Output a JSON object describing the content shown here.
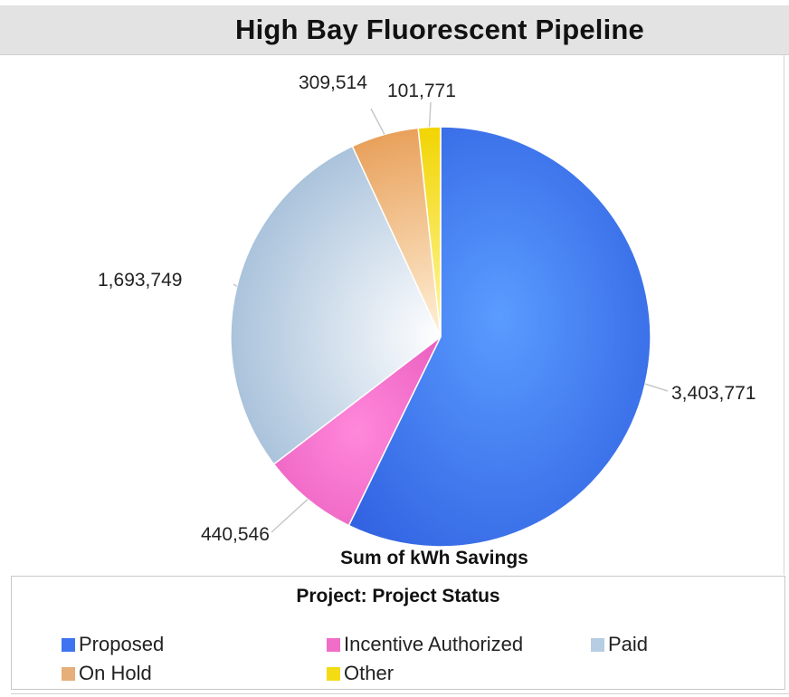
{
  "title": "High Bay Fluorescent Pipeline",
  "chart_data": {
    "type": "pie",
    "title": "High Bay Fluorescent Pipeline",
    "measure_label": "Sum of kWh Savings",
    "legend_title": "Project: Project Status",
    "legend_position": "bottom",
    "slices": [
      {
        "name": "Proposed",
        "value": 3403771,
        "label": "3,403,771",
        "color": "#3f74f0"
      },
      {
        "name": "Incentive Authorized",
        "value": 440546,
        "label": "440,546",
        "color": "#f06ec8"
      },
      {
        "name": "Paid",
        "value": 1693749,
        "label": "1,693,749",
        "color": "#c3d3e3"
      },
      {
        "name": "On Hold",
        "value": 309514,
        "label": "309,514",
        "color": "#eaa45f"
      },
      {
        "name": "Other",
        "value": 101771,
        "label": "101,771",
        "color": "#f3dc15"
      }
    ]
  },
  "legend": {
    "items": [
      {
        "label": "Proposed",
        "color": "#3f74f0"
      },
      {
        "label": "Incentive Authorized",
        "color": "#f06ec8"
      },
      {
        "label": "Paid",
        "color": "#b7cde2"
      },
      {
        "label": "On Hold",
        "color": "#e6ae78"
      },
      {
        "label": "Other",
        "color": "#f3dc15"
      }
    ]
  }
}
